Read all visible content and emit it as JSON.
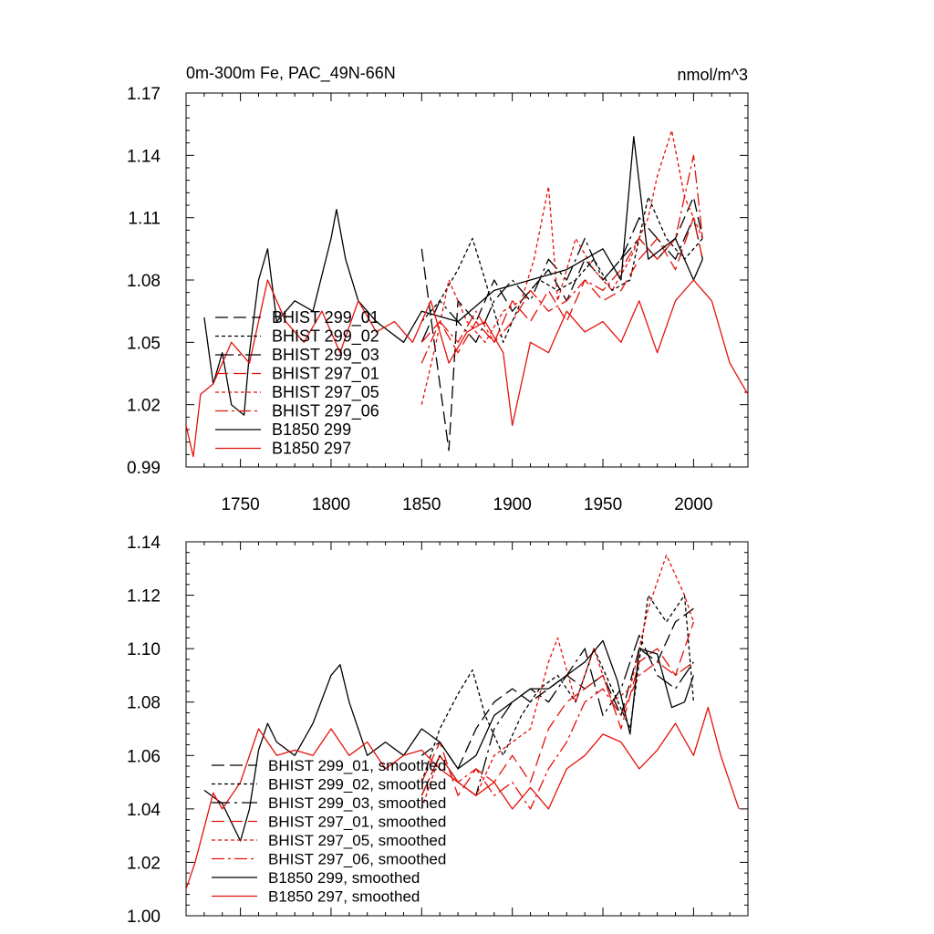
{
  "chart_data": [
    {
      "type": "line",
      "title": "0m-300m Fe, PAC_49N-66N",
      "units": "nmol/m^3",
      "xlabel": "",
      "ylabel": "",
      "xlim": [
        1720,
        2030
      ],
      "ylim": [
        0.99,
        1.17
      ],
      "xticks": [
        1750,
        1800,
        1850,
        1900,
        1950,
        2000
      ],
      "xtick_labels": [
        "1750",
        "1800",
        "1850",
        "1900",
        "1950",
        "2000"
      ],
      "yticks": [
        0.99,
        1.02,
        1.05,
        1.08,
        1.11,
        1.14,
        1.17
      ],
      "ytick_labels": [
        "0.99",
        "1.02",
        "1.05",
        "1.08",
        "1.11",
        "1.14",
        "1.17"
      ],
      "legend_position": "lower-left",
      "series": [
        {
          "name": "BHIST 299_01",
          "color": "#000000",
          "dash": "14,6",
          "x": [
            1850,
            1860,
            1865,
            1870,
            1880,
            1890,
            1900,
            1910,
            1920,
            1930,
            1940,
            1950,
            1960,
            1970,
            1980,
            1990,
            2000,
            2005
          ],
          "values": [
            1.095,
            1.03,
            0.998,
            1.07,
            1.06,
            1.08,
            1.065,
            1.075,
            1.085,
            1.07,
            1.09,
            1.08,
            1.09,
            1.1,
            1.09,
            1.1,
            1.12,
            1.1
          ]
        },
        {
          "name": "BHIST 299_02",
          "color": "#000000",
          "dash": "4,3",
          "x": [
            1850,
            1860,
            1870,
            1878,
            1885,
            1895,
            1905,
            1915,
            1925,
            1935,
            1945,
            1955,
            1965,
            1975,
            1985,
            1995,
            2005
          ],
          "values": [
            1.06,
            1.07,
            1.085,
            1.1,
            1.08,
            1.05,
            1.07,
            1.08,
            1.075,
            1.08,
            1.09,
            1.075,
            1.08,
            1.12,
            1.1,
            1.09,
            1.1
          ]
        },
        {
          "name": "BHIST 299_03",
          "color": "#000000",
          "dash": "20,5,3,5",
          "x": [
            1850,
            1860,
            1870,
            1880,
            1890,
            1900,
            1910,
            1920,
            1930,
            1940,
            1950,
            1960,
            1970,
            1980,
            1990,
            2000,
            2005
          ],
          "values": [
            1.05,
            1.07,
            1.06,
            1.05,
            1.07,
            1.08,
            1.07,
            1.09,
            1.08,
            1.1,
            1.08,
            1.09,
            1.11,
            1.1,
            1.09,
            1.11,
            1.09
          ]
        },
        {
          "name": "BHIST 297_01",
          "color": "#e3120b",
          "dash": "14,6",
          "x": [
            1850,
            1860,
            1870,
            1880,
            1890,
            1900,
            1910,
            1920,
            1930,
            1940,
            1950,
            1960,
            1970,
            1980,
            1990,
            2000,
            2005
          ],
          "values": [
            1.05,
            1.06,
            1.045,
            1.06,
            1.05,
            1.07,
            1.06,
            1.075,
            1.06,
            1.08,
            1.07,
            1.075,
            1.09,
            1.1,
            1.085,
            1.11,
            1.09
          ]
        },
        {
          "name": "BHIST 297_05",
          "color": "#e3120b",
          "dash": "4,3",
          "x": [
            1850,
            1858,
            1865,
            1875,
            1885,
            1895,
            1905,
            1912,
            1920,
            1925,
            1935,
            1945,
            1955,
            1965,
            1975,
            1980,
            1988,
            1995,
            2005
          ],
          "values": [
            1.02,
            1.05,
            1.08,
            1.06,
            1.05,
            1.065,
            1.07,
            1.09,
            1.125,
            1.07,
            1.1,
            1.085,
            1.075,
            1.09,
            1.11,
            1.13,
            1.152,
            1.12,
            1.1
          ]
        },
        {
          "name": "BHIST 297_06",
          "color": "#e3120b",
          "dash": "14,4,3,4",
          "x": [
            1850,
            1860,
            1870,
            1880,
            1890,
            1900,
            1910,
            1920,
            1930,
            1940,
            1950,
            1960,
            1970,
            1980,
            1990,
            2000,
            2005
          ],
          "values": [
            1.04,
            1.06,
            1.05,
            1.065,
            1.05,
            1.06,
            1.075,
            1.065,
            1.07,
            1.08,
            1.075,
            1.085,
            1.1,
            1.09,
            1.1,
            1.14,
            1.1
          ]
        },
        {
          "name": "B1850 299",
          "color": "#000000",
          "dash": "",
          "x": [
            1730,
            1735,
            1740,
            1745,
            1752,
            1755,
            1760,
            1765,
            1770,
            1780,
            1790,
            1800,
            1803,
            1808,
            1815,
            1825,
            1840,
            1850,
            1870,
            1890,
            1910,
            1930,
            1950,
            1960,
            1967,
            1975,
            1990,
            2000,
            2005
          ],
          "values": [
            1.062,
            1.03,
            1.045,
            1.02,
            1.015,
            1.045,
            1.08,
            1.095,
            1.06,
            1.07,
            1.065,
            1.1,
            1.114,
            1.09,
            1.07,
            1.06,
            1.05,
            1.065,
            1.06,
            1.075,
            1.08,
            1.085,
            1.095,
            1.08,
            1.149,
            1.09,
            1.1,
            1.08,
            1.09
          ]
        },
        {
          "name": "B1850 297",
          "color": "#e3120b",
          "dash": "",
          "x": [
            1720,
            1724,
            1728,
            1735,
            1745,
            1755,
            1765,
            1775,
            1785,
            1795,
            1805,
            1815,
            1825,
            1835,
            1845,
            1855,
            1865,
            1875,
            1885,
            1895,
            1900,
            1910,
            1920,
            1930,
            1940,
            1950,
            1960,
            1970,
            1980,
            1990,
            2000,
            2010,
            2020,
            2030
          ],
          "values": [
            1.01,
            0.995,
            1.025,
            1.03,
            1.05,
            1.04,
            1.08,
            1.06,
            1.05,
            1.065,
            1.045,
            1.07,
            1.055,
            1.06,
            1.05,
            1.07,
            1.04,
            1.055,
            1.06,
            1.045,
            1.01,
            1.05,
            1.045,
            1.065,
            1.055,
            1.06,
            1.05,
            1.07,
            1.045,
            1.07,
            1.08,
            1.07,
            1.04,
            1.025
          ]
        }
      ]
    },
    {
      "type": "line",
      "title": "",
      "xlabel": "",
      "ylabel": "",
      "xlim": [
        1720,
        2030
      ],
      "ylim": [
        1.0,
        1.14
      ],
      "xticks": [
        1750,
        1800,
        1850,
        1900,
        1950,
        2000
      ],
      "yticks": [
        1.0,
        1.02,
        1.04,
        1.06,
        1.08,
        1.1,
        1.12,
        1.14
      ],
      "ytick_labels": [
        "1.00",
        "1.02",
        "1.04",
        "1.06",
        "1.08",
        "1.10",
        "1.12",
        "1.14"
      ],
      "legend_position": "lower-left",
      "series": [
        {
          "name": "BHIST 299_01, smoothed",
          "color": "#000000",
          "dash": "14,6",
          "x": [
            1850,
            1860,
            1870,
            1880,
            1890,
            1900,
            1910,
            1920,
            1930,
            1940,
            1950,
            1960,
            1970,
            1980,
            1990,
            2000
          ],
          "values": [
            1.06,
            1.065,
            1.055,
            1.07,
            1.08,
            1.085,
            1.08,
            1.085,
            1.09,
            1.085,
            1.09,
            1.075,
            1.1,
            1.095,
            1.11,
            1.115
          ]
        },
        {
          "name": "BHIST 299_02, smoothed",
          "color": "#000000",
          "dash": "4,3",
          "x": [
            1850,
            1860,
            1870,
            1878,
            1885,
            1895,
            1905,
            1915,
            1925,
            1935,
            1945,
            1955,
            1965,
            1975,
            1985,
            1995,
            2000
          ],
          "values": [
            1.05,
            1.07,
            1.083,
            1.092,
            1.075,
            1.06,
            1.075,
            1.085,
            1.09,
            1.08,
            1.1,
            1.085,
            1.07,
            1.12,
            1.11,
            1.12,
            1.08
          ]
        },
        {
          "name": "BHIST 299_03, smoothed",
          "color": "#000000",
          "dash": "20,5,3,5",
          "x": [
            1850,
            1860,
            1870,
            1880,
            1890,
            1900,
            1910,
            1920,
            1930,
            1940,
            1950,
            1960,
            1970,
            1980,
            1990,
            2000
          ],
          "values": [
            1.045,
            1.06,
            1.05,
            1.045,
            1.07,
            1.08,
            1.085,
            1.08,
            1.09,
            1.1,
            1.075,
            1.085,
            1.105,
            1.09,
            1.085,
            1.095
          ]
        },
        {
          "name": "BHIST 297_01, smoothed",
          "color": "#e3120b",
          "dash": "14,6",
          "x": [
            1850,
            1860,
            1870,
            1880,
            1890,
            1900,
            1910,
            1920,
            1930,
            1940,
            1950,
            1960,
            1970,
            1980,
            1990,
            2000
          ],
          "values": [
            1.05,
            1.065,
            1.045,
            1.055,
            1.05,
            1.06,
            1.05,
            1.07,
            1.08,
            1.085,
            1.09,
            1.07,
            1.095,
            1.1,
            1.09,
            1.11
          ]
        },
        {
          "name": "BHIST 297_05, smoothed",
          "color": "#e3120b",
          "dash": "4,3",
          "x": [
            1850,
            1860,
            1870,
            1880,
            1890,
            1900,
            1910,
            1920,
            1925,
            1935,
            1945,
            1955,
            1965,
            1975,
            1985,
            1995,
            2000
          ],
          "values": [
            1.04,
            1.06,
            1.05,
            1.045,
            1.06,
            1.065,
            1.07,
            1.095,
            1.104,
            1.08,
            1.1,
            1.08,
            1.085,
            1.115,
            1.135,
            1.12,
            1.11
          ]
        },
        {
          "name": "BHIST 297_06, smoothed",
          "color": "#e3120b",
          "dash": "14,4,3,4",
          "x": [
            1850,
            1860,
            1870,
            1880,
            1890,
            1900,
            1910,
            1920,
            1930,
            1940,
            1950,
            1960,
            1970,
            1980,
            1990,
            2000
          ],
          "values": [
            1.045,
            1.06,
            1.05,
            1.055,
            1.045,
            1.05,
            1.04,
            1.055,
            1.065,
            1.08,
            1.085,
            1.075,
            1.09,
            1.095,
            1.09,
            1.095
          ]
        },
        {
          "name": "B1850 299, smoothed",
          "color": "#000000",
          "dash": "",
          "x": [
            1730,
            1740,
            1750,
            1755,
            1760,
            1765,
            1770,
            1780,
            1790,
            1800,
            1805,
            1810,
            1820,
            1830,
            1840,
            1850,
            1860,
            1870,
            1880,
            1890,
            1900,
            1910,
            1920,
            1930,
            1940,
            1950,
            1958,
            1965,
            1970,
            1980,
            1988,
            1995,
            2000
          ],
          "values": [
            1.047,
            1.042,
            1.028,
            1.04,
            1.062,
            1.072,
            1.065,
            1.06,
            1.072,
            1.09,
            1.094,
            1.08,
            1.06,
            1.065,
            1.06,
            1.07,
            1.065,
            1.055,
            1.06,
            1.075,
            1.08,
            1.085,
            1.085,
            1.09,
            1.095,
            1.103,
            1.088,
            1.068,
            1.1,
            1.098,
            1.078,
            1.08,
            1.09
          ]
        },
        {
          "name": "B1850 297, smoothed",
          "color": "#e3120b",
          "dash": "",
          "x": [
            1720,
            1725,
            1730,
            1735,
            1740,
            1750,
            1760,
            1770,
            1780,
            1790,
            1800,
            1810,
            1820,
            1830,
            1840,
            1850,
            1860,
            1870,
            1880,
            1890,
            1900,
            1910,
            1920,
            1930,
            1940,
            1950,
            1960,
            1970,
            1980,
            1990,
            2000,
            2008,
            2015,
            2025
          ],
          "values": [
            1.01,
            1.02,
            1.033,
            1.046,
            1.04,
            1.05,
            1.07,
            1.06,
            1.062,
            1.06,
            1.07,
            1.06,
            1.065,
            1.055,
            1.06,
            1.062,
            1.055,
            1.05,
            1.045,
            1.05,
            1.04,
            1.048,
            1.04,
            1.055,
            1.06,
            1.068,
            1.065,
            1.055,
            1.062,
            1.072,
            1.06,
            1.078,
            1.06,
            1.04
          ]
        }
      ]
    }
  ]
}
